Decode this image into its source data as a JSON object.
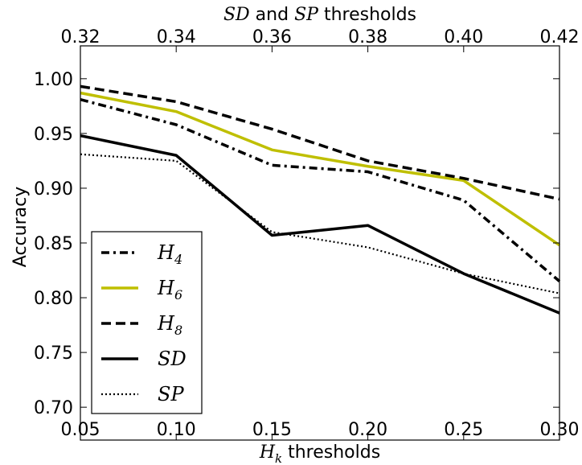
{
  "chart_data": {
    "type": "line",
    "x": [
      0.05,
      0.1,
      0.15,
      0.2,
      0.25,
      0.3
    ],
    "xlabel": "H_k thresholds",
    "x2label": "SD and SP thresholds",
    "ylabel": "Accuracy",
    "xlim": [
      0.05,
      0.3
    ],
    "ylim": [
      0.67,
      1.03
    ],
    "xticks": [
      "0.05",
      "0.10",
      "0.15",
      "0.20",
      "0.25",
      "0.30"
    ],
    "x2ticks": [
      "0.32",
      "0.34",
      "0.36",
      "0.38",
      "0.40",
      "0.42"
    ],
    "yticks": [
      "0.70",
      "0.75",
      "0.80",
      "0.85",
      "0.90",
      "0.95",
      "1.00"
    ],
    "grid": false,
    "legend_position": "lower-left",
    "series": [
      {
        "name": "H4",
        "base": "H",
        "sub": "4",
        "style": "dashdot",
        "color": "#000000",
        "values": [
          0.981,
          0.958,
          0.921,
          0.915,
          0.889,
          0.815
        ]
      },
      {
        "name": "H6",
        "base": "H",
        "sub": "6",
        "style": "solid",
        "color": "#bfbf00",
        "values": [
          0.987,
          0.97,
          0.935,
          0.92,
          0.907,
          0.848
        ]
      },
      {
        "name": "H8",
        "base": "H",
        "sub": "8",
        "style": "dashed",
        "color": "#000000",
        "values": [
          0.993,
          0.979,
          0.954,
          0.925,
          0.909,
          0.89
        ]
      },
      {
        "name": "SD",
        "base": "SD",
        "sub": "",
        "style": "solid",
        "color": "#000000",
        "values": [
          0.948,
          0.93,
          0.857,
          0.866,
          0.822,
          0.786
        ]
      },
      {
        "name": "SP",
        "base": "SP",
        "sub": "",
        "style": "dotted",
        "color": "#000000",
        "values": [
          0.931,
          0.925,
          0.86,
          0.846,
          0.822,
          0.804
        ]
      }
    ]
  }
}
